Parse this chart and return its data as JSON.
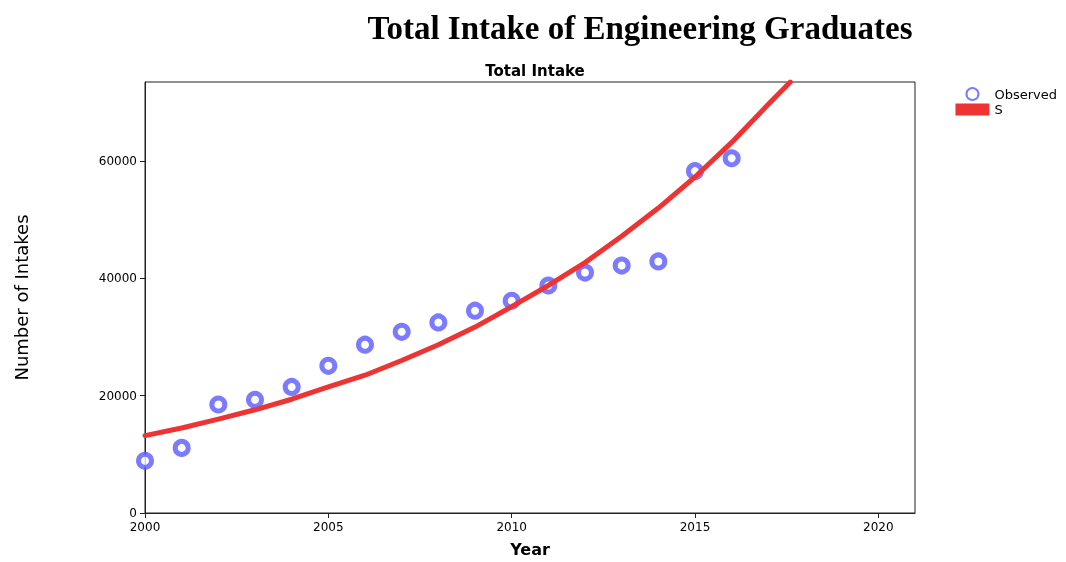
{
  "chart_data": {
    "type": "scatter",
    "title": "Total Intake of Engineering Graduates",
    "subtitle": "Total Intake",
    "xlabel": "Year",
    "ylabel": "Number of Intakes",
    "xlim": [
      2000,
      2021
    ],
    "xticks": [
      2000,
      2005,
      2010,
      2015,
      2020
    ],
    "ylim": [
      0,
      73500
    ],
    "yticks": [
      0,
      20000,
      40000,
      60000
    ],
    "grid": false,
    "legend": "top right",
    "series": [
      {
        "name": "Observed",
        "marker": "circle",
        "color": "#5a5aff",
        "x": [
          2000,
          2001,
          2002,
          2003,
          2004,
          2005,
          2006,
          2007,
          2008,
          2009,
          2010,
          2011,
          2012,
          2013,
          2014,
          2015,
          2016
        ],
        "values": [
          8900,
          11100,
          18500,
          19300,
          21500,
          25100,
          28700,
          30900,
          32500,
          34500,
          36200,
          38800,
          41000,
          42200,
          42900,
          58300,
          60500
        ]
      },
      {
        "name": "S",
        "type": "line",
        "marker": "none",
        "line_style": "solid",
        "color": "#ee3333",
        "x": [
          2000,
          2001,
          2002,
          2003,
          2004,
          2005,
          2006,
          2007,
          2008,
          2009,
          2010,
          2011,
          2012,
          2013,
          2014,
          2015,
          2016,
          2017,
          2017.6
        ],
        "values": [
          13200,
          14500,
          16000,
          17600,
          19400,
          21500,
          23500,
          26000,
          28700,
          31700,
          35200,
          38800,
          42700,
          47200,
          52000,
          57300,
          63200,
          69700,
          73500
        ]
      }
    ]
  }
}
